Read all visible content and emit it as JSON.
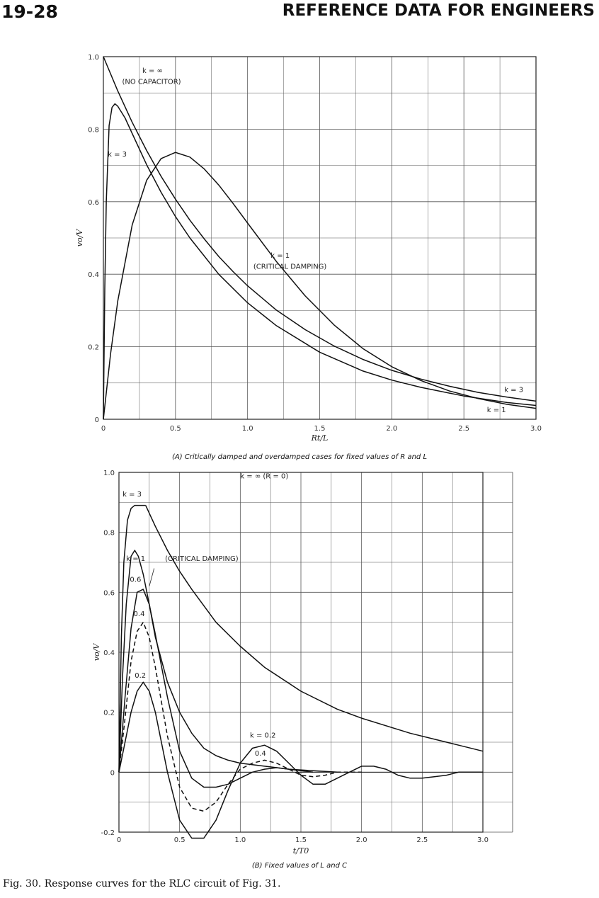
{
  "header": {
    "page_number": "19-28",
    "title": "REFERENCE DATA FOR ENGINEERS"
  },
  "figure_caption": "Fig. 30. Response curves for the RLC circuit of Fig. 31.",
  "chart_data": [
    {
      "type": "line",
      "caption": "(A) Critically damped and overdamped cases for fixed values of R and L",
      "xlabel": "Rt/L",
      "ylabel": "vo/V",
      "xlim": [
        0,
        3.0
      ],
      "ylim": [
        0,
        1.0
      ],
      "xticks": [
        "0",
        "0.5",
        "1.0",
        "1.5",
        "2.0",
        "2.5",
        "3.0"
      ],
      "yticks": [
        "0",
        "0.2",
        "0.4",
        "0.6",
        "0.8",
        "1.0"
      ],
      "grid": true,
      "series": [
        {
          "name": "k = ∞ (NO CAPACITOR)",
          "x": [
            0,
            0.1,
            0.2,
            0.3,
            0.4,
            0.5,
            0.6,
            0.7,
            0.8,
            0.9,
            1.0,
            1.2,
            1.4,
            1.6,
            1.8,
            2.0,
            2.2,
            2.4,
            2.6,
            2.8,
            3.0
          ],
          "y": [
            1.0,
            0.905,
            0.819,
            0.741,
            0.67,
            0.607,
            0.549,
            0.497,
            0.449,
            0.407,
            0.368,
            0.301,
            0.247,
            0.202,
            0.165,
            0.135,
            0.111,
            0.091,
            0.074,
            0.061,
            0.05
          ]
        },
        {
          "name": "k = 3",
          "x": [
            0,
            0.01,
            0.02,
            0.04,
            0.06,
            0.08,
            0.1,
            0.15,
            0.2,
            0.3,
            0.4,
            0.5,
            0.6,
            0.8,
            1.0,
            1.2,
            1.5,
            1.8,
            2.0,
            2.2,
            2.5,
            2.8,
            3.0
          ],
          "y": [
            0,
            0.36,
            0.6,
            0.81,
            0.86,
            0.87,
            0.863,
            0.831,
            0.788,
            0.702,
            0.626,
            0.559,
            0.5,
            0.4,
            0.321,
            0.258,
            0.185,
            0.133,
            0.108,
            0.088,
            0.064,
            0.046,
            0.038
          ]
        },
        {
          "name": "k = 1 (CRITICAL DAMPING)",
          "x": [
            0,
            0.05,
            0.1,
            0.2,
            0.3,
            0.4,
            0.5,
            0.6,
            0.7,
            0.8,
            0.9,
            1.0,
            1.2,
            1.4,
            1.6,
            1.8,
            2.0,
            2.2,
            2.4,
            2.6,
            2.8,
            3.0
          ],
          "y": [
            0,
            0.181,
            0.327,
            0.536,
            0.659,
            0.719,
            0.736,
            0.723,
            0.69,
            0.646,
            0.595,
            0.541,
            0.435,
            0.34,
            0.26,
            0.195,
            0.145,
            0.107,
            0.078,
            0.057,
            0.041,
            0.03
          ]
        }
      ],
      "annotations": [
        "k = ∞",
        "(NO CAPACITOR)",
        "k = 3",
        "k = 1",
        "(CRITICAL DAMPING)",
        "k = 3",
        "k = 1"
      ]
    },
    {
      "type": "line",
      "caption": "(B) Fixed values of L and C",
      "xlabel": "t/T0",
      "ylabel": "vo/V",
      "xlim": [
        0,
        3.0
      ],
      "ylim": [
        -0.2,
        1.0
      ],
      "xticks": [
        "0",
        "0.5",
        "1.0",
        "1.5",
        "2.0",
        "2.5",
        "3.0"
      ],
      "yticks": [
        "-0.2",
        "0",
        "0.2",
        "0.4",
        "0.6",
        "0.8",
        "1.0"
      ],
      "grid": true,
      "series": [
        {
          "name": "k = ∞ (R = 0)",
          "x": [
            0.22,
            0.3,
            0.4,
            0.5,
            0.6,
            0.8,
            1.0,
            1.2,
            1.5,
            1.8,
            2.0,
            2.4,
            2.8,
            3.0
          ],
          "y": [
            0.89,
            0.82,
            0.74,
            0.67,
            0.61,
            0.5,
            0.42,
            0.35,
            0.27,
            0.21,
            0.18,
            0.13,
            0.09,
            0.07
          ]
        },
        {
          "name": "k = 3",
          "x": [
            0,
            0.02,
            0.04,
            0.07,
            0.1,
            0.13,
            0.18,
            0.22
          ],
          "y": [
            0,
            0.45,
            0.7,
            0.84,
            0.88,
            0.89,
            0.89,
            0.89
          ]
        },
        {
          "name": "k = 1",
          "x": [
            0,
            0.03,
            0.06,
            0.1,
            0.13,
            0.16,
            0.2,
            0.25,
            0.3,
            0.4,
            0.5,
            0.6,
            0.7,
            0.8,
            0.9,
            1.0,
            1.2,
            1.4,
            1.6,
            1.8
          ],
          "y": [
            0,
            0.32,
            0.56,
            0.72,
            0.74,
            0.72,
            0.66,
            0.56,
            0.45,
            0.3,
            0.2,
            0.13,
            0.08,
            0.055,
            0.04,
            0.03,
            0.02,
            0.01,
            0.005,
            0.0
          ]
        },
        {
          "name": "k = 0.6",
          "x": [
            0,
            0.05,
            0.1,
            0.15,
            0.2,
            0.25,
            0.3,
            0.4,
            0.5,
            0.6,
            0.7,
            0.8,
            0.9,
            1.0,
            1.1,
            1.2,
            1.3,
            1.4,
            1.5,
            1.6
          ],
          "y": [
            0,
            0.25,
            0.48,
            0.6,
            0.61,
            0.56,
            0.46,
            0.25,
            0.07,
            -0.02,
            -0.05,
            -0.05,
            -0.04,
            -0.02,
            0.0,
            0.01,
            0.015,
            0.01,
            0.005,
            0.0
          ]
        },
        {
          "name": "k = 0.4",
          "dashed": true,
          "x": [
            0,
            0.05,
            0.1,
            0.15,
            0.2,
            0.25,
            0.3,
            0.4,
            0.5,
            0.6,
            0.7,
            0.8,
            0.9,
            1.0,
            1.1,
            1.2,
            1.3,
            1.4,
            1.5,
            1.6,
            1.7,
            1.8,
            1.9,
            2.0
          ],
          "y": [
            0,
            0.18,
            0.37,
            0.47,
            0.5,
            0.45,
            0.35,
            0.12,
            -0.05,
            -0.12,
            -0.13,
            -0.1,
            -0.04,
            0.01,
            0.03,
            0.04,
            0.03,
            0.01,
            -0.01,
            -0.015,
            -0.01,
            0.0,
            0.0,
            0.0
          ]
        },
        {
          "name": "k = 0.2",
          "x": [
            0,
            0.05,
            0.1,
            0.15,
            0.2,
            0.25,
            0.3,
            0.4,
            0.5,
            0.6,
            0.7,
            0.8,
            0.9,
            1.0,
            1.1,
            1.2,
            1.3,
            1.4,
            1.5,
            1.6,
            1.7,
            1.8,
            1.9,
            2.0,
            2.1,
            2.2,
            2.3,
            2.4,
            2.5,
            2.6,
            2.7,
            2.8,
            2.9,
            3.0
          ],
          "y": [
            0,
            0.1,
            0.2,
            0.27,
            0.3,
            0.27,
            0.2,
            0.0,
            -0.16,
            -0.22,
            -0.22,
            -0.16,
            -0.06,
            0.03,
            0.08,
            0.09,
            0.07,
            0.03,
            -0.01,
            -0.04,
            -0.04,
            -0.02,
            0.0,
            0.02,
            0.02,
            0.01,
            -0.01,
            -0.02,
            -0.02,
            -0.015,
            -0.01,
            0.0,
            0.0,
            0.0
          ]
        }
      ],
      "annotations": [
        "k = ∞ (R = 0)",
        "k = 3",
        "k = 1",
        "(CRITICAL DAMPING)",
        "0.6",
        "0.4",
        "0.2",
        "k = 0.2",
        "0.4"
      ]
    }
  ]
}
